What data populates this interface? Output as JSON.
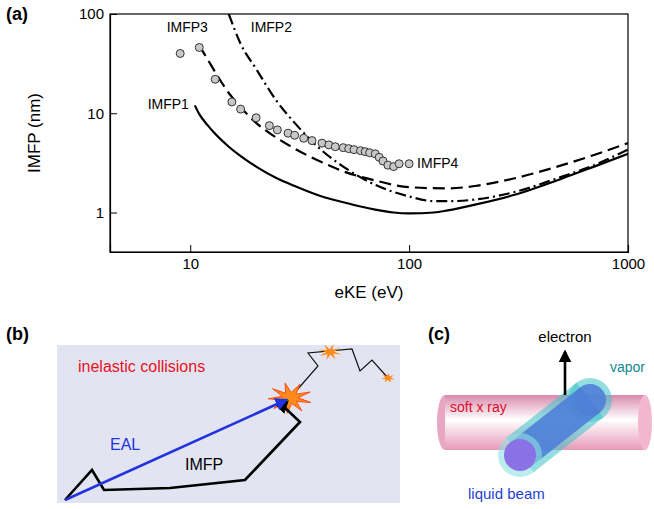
{
  "chart_data": {
    "type": "line",
    "log": true,
    "xlabel": "eKE (eV)",
    "ylabel": "IMFP (nm)",
    "xlim": [
      4.3,
      1000
    ],
    "ylim": [
      0.4,
      100
    ],
    "xticks": [
      10,
      100,
      1000
    ],
    "yticks": [
      1,
      10,
      100
    ],
    "grid": false,
    "series": [
      {
        "name": "IMFP1",
        "color": "#000000",
        "line_style": "solid",
        "x": [
          10.5,
          11,
          12,
          13,
          15,
          17,
          20,
          25,
          30,
          40,
          50,
          60,
          70,
          85,
          100,
          130,
          150,
          200,
          300,
          500,
          700,
          1000
        ],
        "values": [
          12,
          9.8,
          7.6,
          6.2,
          4.6,
          3.7,
          2.9,
          2.2,
          1.85,
          1.45,
          1.27,
          1.15,
          1.07,
          1.0,
          0.98,
          1.0,
          1.05,
          1.2,
          1.5,
          2.2,
          2.9,
          3.9
        ]
      },
      {
        "name": "IMFP2",
        "color": "#000000",
        "line_style": "dashdot",
        "x": [
          15,
          17,
          20,
          25,
          30,
          40,
          50,
          70,
          100,
          130,
          150,
          200,
          300,
          500,
          700,
          1000
        ],
        "values": [
          100,
          50,
          28,
          13,
          8,
          4.2,
          2.9,
          1.9,
          1.45,
          1.3,
          1.3,
          1.35,
          1.6,
          2.3,
          3.0,
          4.3
        ]
      },
      {
        "name": "IMFP3",
        "color": "#000000",
        "line_style": "dashed",
        "x": [
          11,
          12,
          13,
          15,
          17,
          20,
          25,
          30,
          40,
          50,
          70,
          100,
          150,
          200,
          300,
          500,
          700,
          1000
        ],
        "values": [
          48,
          35,
          26,
          16,
          11.5,
          8,
          5.6,
          4.4,
          3.2,
          2.6,
          2.1,
          1.8,
          1.75,
          1.85,
          2.2,
          3.0,
          3.8,
          5.0
        ]
      },
      {
        "name": "IMFP4",
        "type": "scatter",
        "marker": "circle",
        "color": "#c8c8c8",
        "x": [
          9,
          11,
          13,
          15.5,
          17,
          20,
          23,
          25,
          28,
          30,
          33,
          36,
          40,
          43,
          46,
          50,
          53,
          56,
          60,
          63,
          66,
          70,
          73,
          76,
          80,
          85,
          90,
          100
        ],
        "values": [
          40,
          46,
          22,
          13,
          11,
          9,
          7.5,
          6.8,
          6.3,
          6,
          5.6,
          5.3,
          5.0,
          4.8,
          4.6,
          4.5,
          4.4,
          4.3,
          4.2,
          4.1,
          4.0,
          3.9,
          3.6,
          3.3,
          3.0,
          2.9,
          3.1,
          3.1
        ]
      }
    ]
  },
  "panel_labels": {
    "a": "(a)",
    "b": "(b)",
    "c": "(c)"
  },
  "diagram_b": {
    "inelastic_collisions": "inelastic collisions",
    "eal": "EAL",
    "imfp": "IMFP"
  },
  "diagram_c": {
    "electron": "electron",
    "soft_x_ray": "soft x ray",
    "vapor": "vapor",
    "liquid_beam": "liquid beam"
  }
}
